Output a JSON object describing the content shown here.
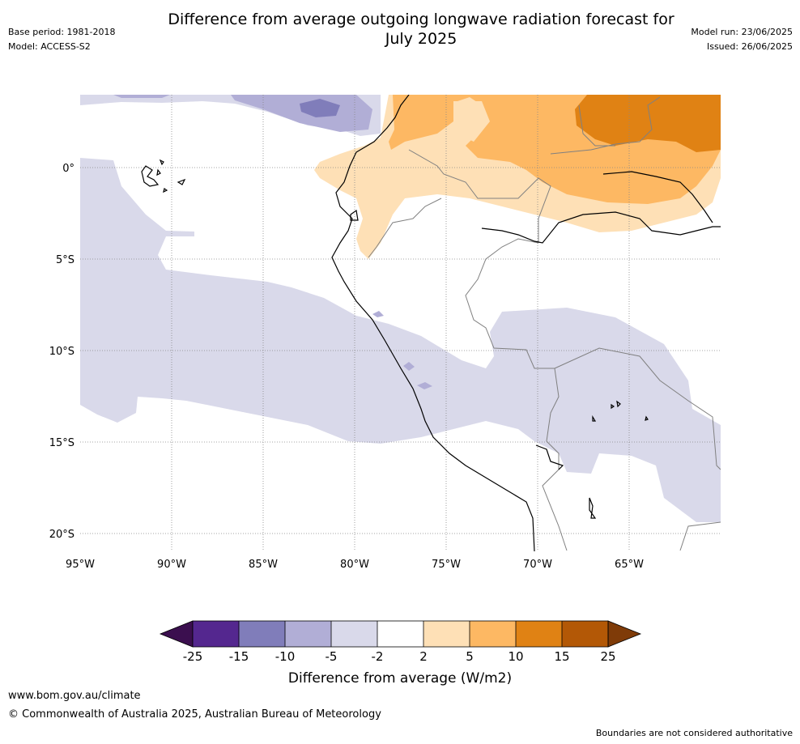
{
  "header": {
    "title_line1": "Difference from average outgoing longwave radiation forecast for",
    "title_line2": "July 2025",
    "base_period": "Base period: 1981-2018",
    "model": "Model: ACCESS-S2",
    "model_run": "Model run: 23/06/2025",
    "issued": "Issued: 26/06/2025"
  },
  "map": {
    "lat_labels": [
      "0°",
      "5°S",
      "10°S",
      "15°S",
      "20°S"
    ],
    "lon_labels": [
      "95°W",
      "90°W",
      "85°W",
      "80°W",
      "75°W",
      "70°W",
      "65°W"
    ]
  },
  "legend": {
    "ticks": [
      "-25",
      "-15",
      "-10",
      "-5",
      "-2",
      "2",
      "5",
      "10",
      "15",
      "25"
    ],
    "colors": [
      "#3b0f4f",
      "#54278f",
      "#807dba",
      "#b1aed6",
      "#d9d9ea",
      "#ffffff",
      "#fee0b6",
      "#fdb863",
      "#e08214",
      "#b35806",
      "#7f3b08"
    ],
    "label": "Difference from average (W/m2)"
  },
  "footer": {
    "url": "www.bom.gov.au/climate",
    "copyright": "© Commonwealth of Australia 2025, Australian Bureau of Meteorology",
    "disclaimer": "Boundaries are not considered authoritative"
  }
}
